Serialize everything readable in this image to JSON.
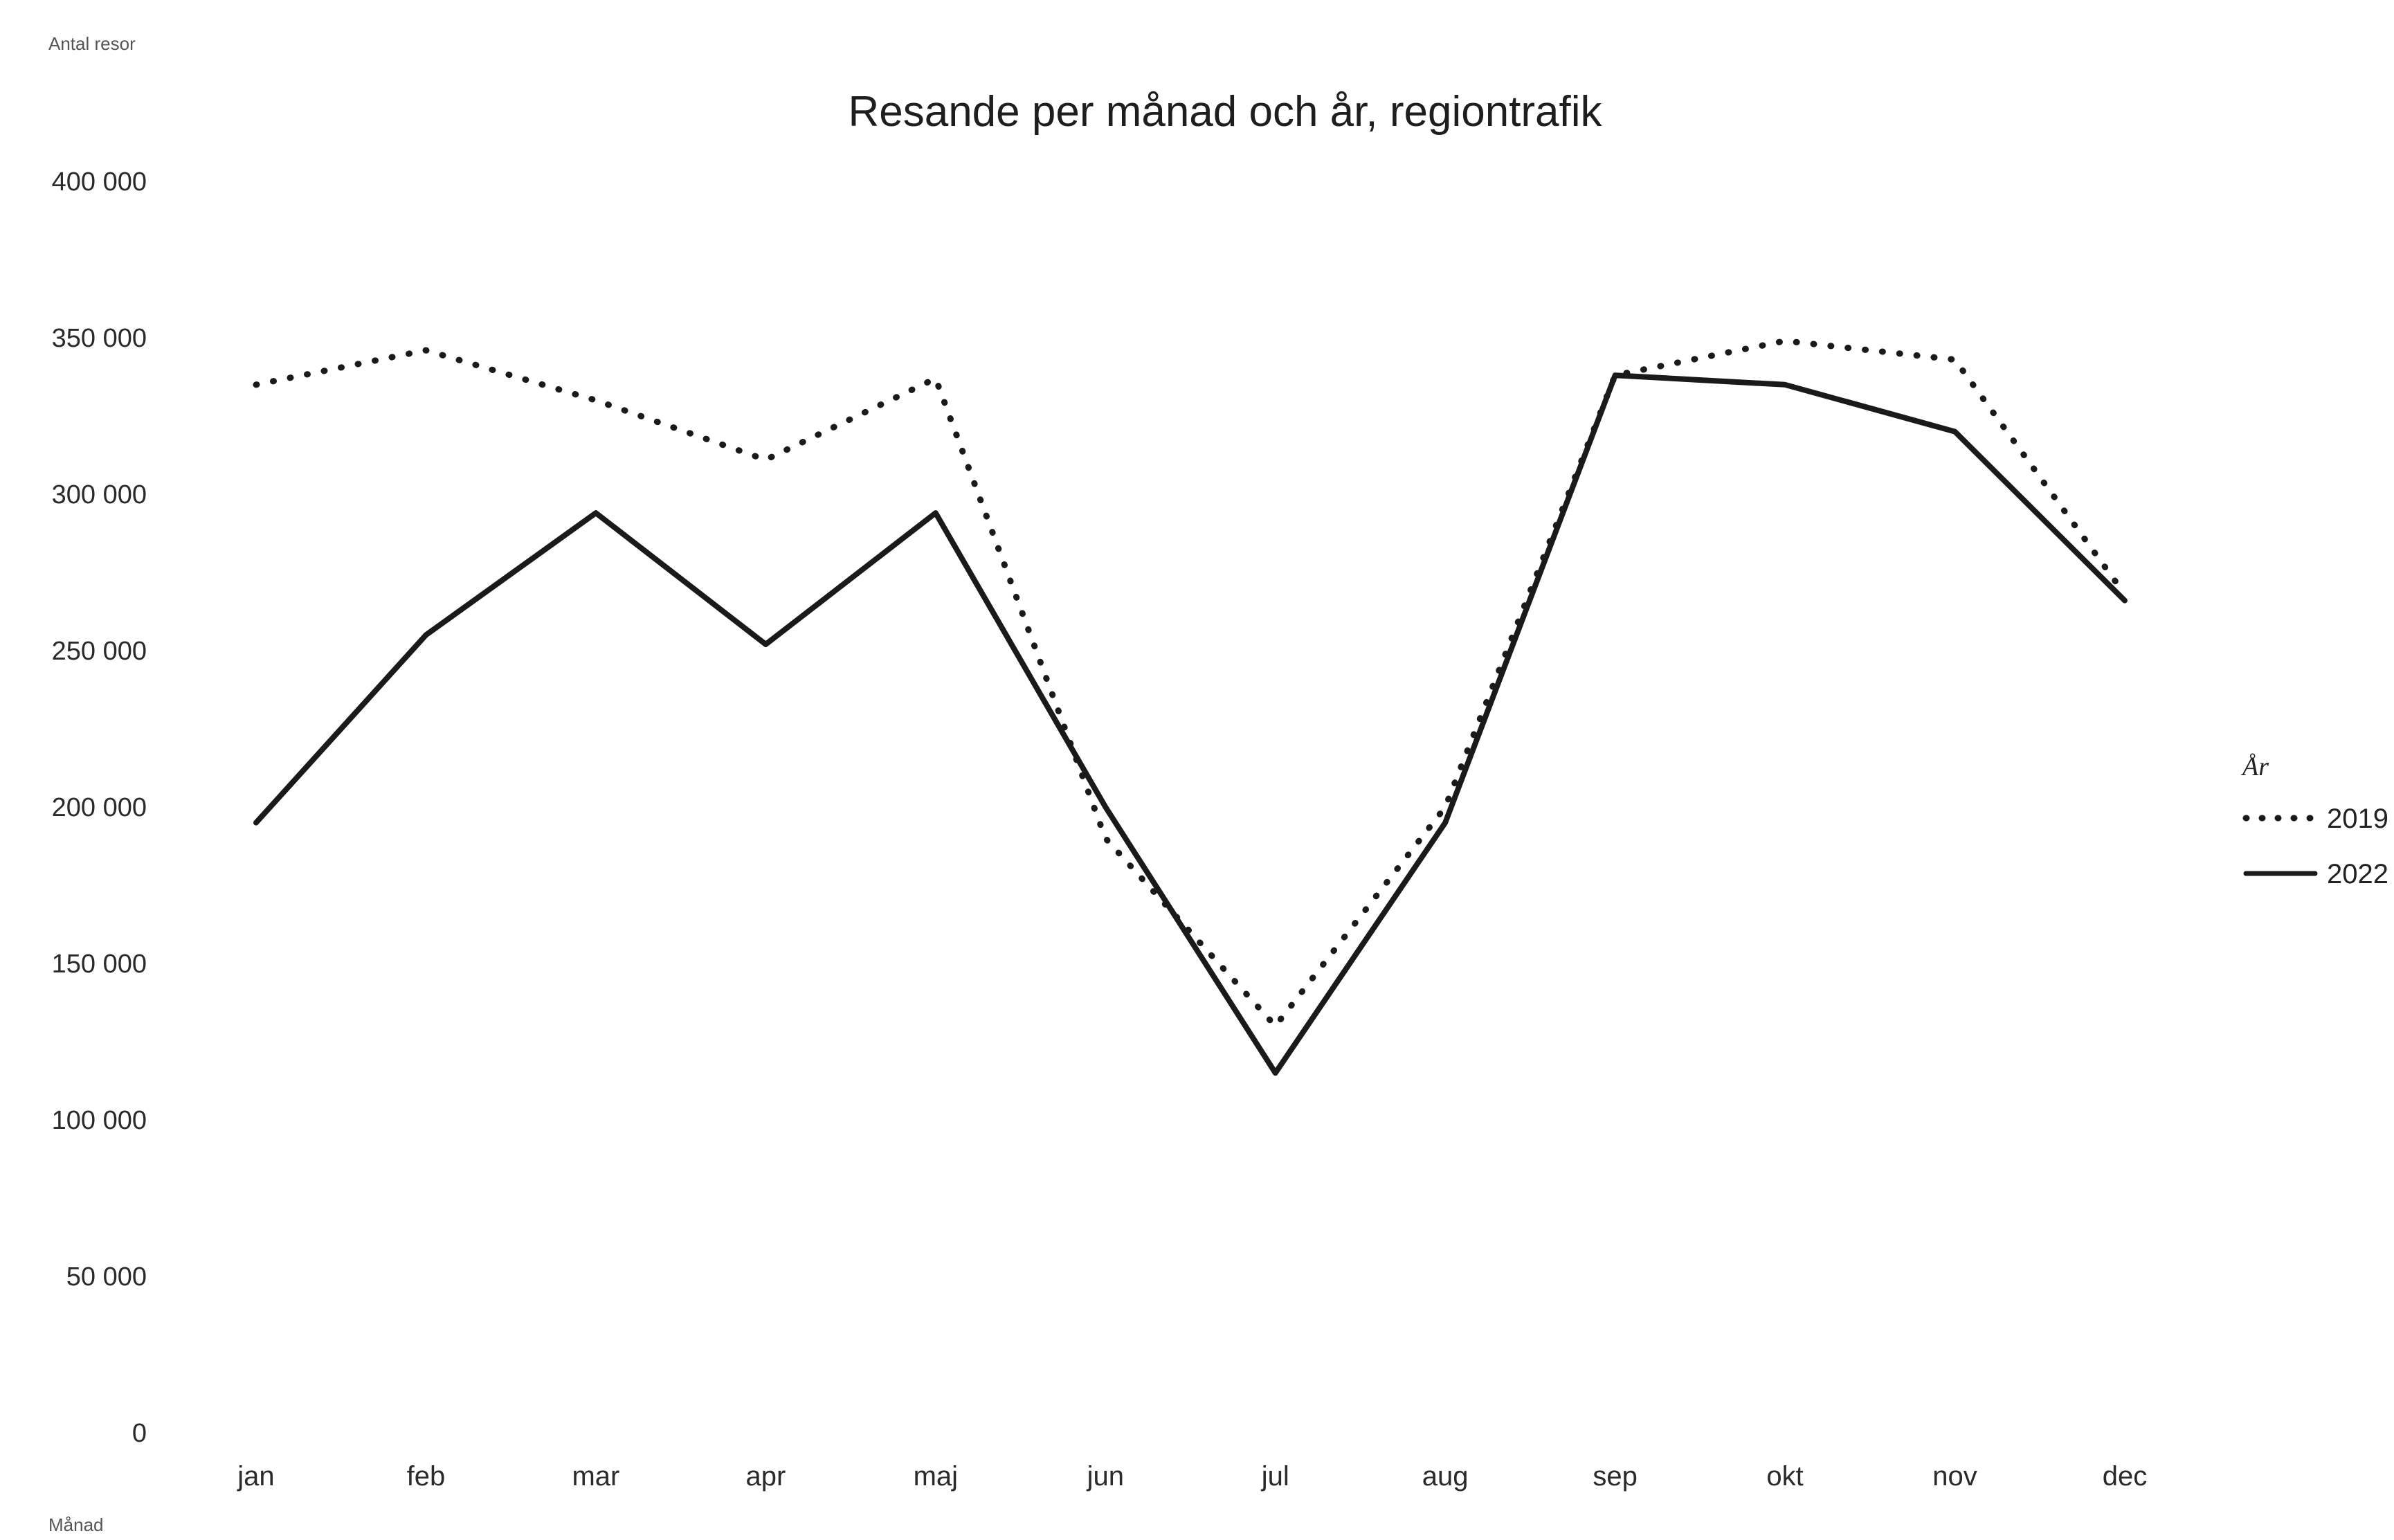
{
  "chart_data": {
    "type": "line",
    "title": "Resande per månad och år, regiontrafik",
    "ylabel": "Antal resor",
    "xlabel": "Månad",
    "categories": [
      "jan",
      "feb",
      "mar",
      "apr",
      "maj",
      "jun",
      "jul",
      "aug",
      "sep",
      "okt",
      "nov",
      "dec"
    ],
    "ylim": [
      0,
      400000
    ],
    "yticks": [
      0,
      50000,
      100000,
      150000,
      200000,
      250000,
      300000,
      350000,
      400000
    ],
    "ytick_labels": [
      "0",
      "50 000",
      "100 000",
      "150 000",
      "200 000",
      "250 000",
      "300 000",
      "350 000",
      "400 000"
    ],
    "grid": false,
    "legend": {
      "title": "År",
      "position": "right"
    },
    "series": [
      {
        "name": "2019",
        "style": "dotted",
        "color": "#1a1a1a",
        "values": [
          335000,
          346000,
          330000,
          311000,
          337000,
          190000,
          130000,
          200000,
          338000,
          349000,
          343000,
          268000
        ]
      },
      {
        "name": "2022",
        "style": "solid",
        "color": "#1a1a1a",
        "values": [
          195000,
          255000,
          294000,
          252000,
          294000,
          200000,
          115000,
          195000,
          338000,
          335000,
          320000,
          266000
        ]
      }
    ]
  }
}
